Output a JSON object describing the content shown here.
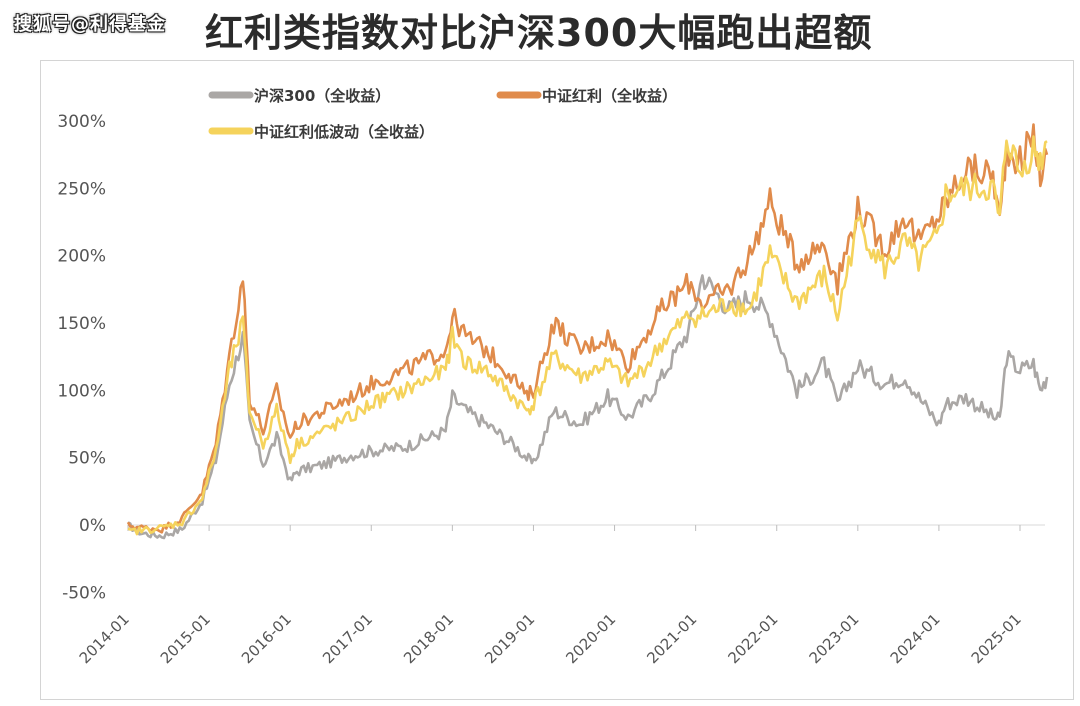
{
  "watermark": "搜狐号@利得基金",
  "title": "红利类指数对比沪深300大幅跑出超额",
  "chart_data": {
    "type": "line",
    "ylim": [
      -50,
      300
    ],
    "yticks": [
      -50,
      0,
      50,
      100,
      150,
      200,
      250,
      300
    ],
    "ytick_labels": [
      "-50%",
      "0%",
      "50%",
      "100%",
      "150%",
      "200%",
      "250%",
      "300%"
    ],
    "xticks": [
      "2014-01",
      "2015-01",
      "2016-01",
      "2017-01",
      "2018-01",
      "2019-01",
      "2020-01",
      "2021-01",
      "2022-01",
      "2023-01",
      "2024-01",
      "2025-01"
    ],
    "x": [
      "2014-01",
      "2014-03",
      "2014-06",
      "2014-09",
      "2014-12",
      "2015-02",
      "2015-04",
      "2015-06",
      "2015-07",
      "2015-09",
      "2015-11",
      "2016-01",
      "2016-02",
      "2016-06",
      "2016-10",
      "2017-01",
      "2017-06",
      "2017-12",
      "2018-01",
      "2018-03",
      "2018-06",
      "2018-10",
      "2018-12",
      "2019-01",
      "2019-04",
      "2019-08",
      "2019-12",
      "2020-03",
      "2020-06",
      "2020-08",
      "2020-12",
      "2021-02",
      "2021-06",
      "2021-09",
      "2021-12",
      "2022-04",
      "2022-08",
      "2022-10",
      "2023-01",
      "2023-05",
      "2023-08",
      "2023-10",
      "2024-01",
      "2024-02",
      "2024-05",
      "2024-09",
      "2024-10",
      "2024-11",
      "2025-01",
      "2025-03",
      "2025-04",
      "2025-05"
    ],
    "series": [
      {
        "name": "沪深300（全收益）",
        "color": "#aaa7a5",
        "values": [
          0,
          -6,
          -8,
          -3,
          18,
          48,
          105,
          140,
          75,
          45,
          65,
          32,
          40,
          45,
          52,
          55,
          58,
          70,
          95,
          85,
          75,
          60,
          50,
          45,
          85,
          75,
          95,
          80,
          95,
          110,
          145,
          185,
          160,
          170,
          155,
          100,
          120,
          90,
          118,
          105,
          110,
          95,
          75,
          90,
          95,
          80,
          78,
          125,
          115,
          120,
          100,
          110
        ]
      },
      {
        "name": "中证红利（全收益）",
        "color": "#e08b4b",
        "values": [
          0,
          -2,
          -3,
          5,
          25,
          60,
          125,
          185,
          95,
          70,
          100,
          65,
          75,
          85,
          95,
          105,
          115,
          130,
          155,
          140,
          130,
          110,
          95,
          100,
          150,
          130,
          140,
          120,
          145,
          160,
          180,
          165,
          175,
          200,
          240,
          195,
          210,
          180,
          235,
          205,
          230,
          210,
          230,
          240,
          265,
          260,
          225,
          280,
          270,
          290,
          260,
          275
        ]
      },
      {
        "name": "中证红利低波动（全收益）",
        "color": "#f5d35c",
        "values": [
          -5,
          -4,
          -2,
          2,
          20,
          55,
          115,
          150,
          85,
          60,
          85,
          50,
          60,
          70,
          80,
          90,
          100,
          115,
          140,
          120,
          115,
          95,
          85,
          90,
          125,
          110,
          120,
          105,
          120,
          135,
          155,
          155,
          165,
          160,
          200,
          165,
          185,
          155,
          225,
          190,
          210,
          195,
          215,
          245,
          250,
          250,
          225,
          290,
          260,
          280,
          270,
          285
        ]
      }
    ],
    "legend": "top-left"
  }
}
